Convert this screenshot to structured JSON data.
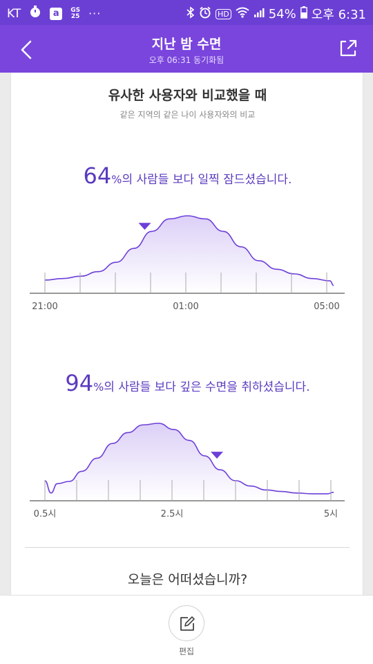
{
  "status_bar": {
    "carrier": "KT",
    "app_icons": [
      "timer-icon",
      "app-icon",
      "gs25-icon"
    ],
    "gs25_top": "GS",
    "gs25_bottom": "25",
    "more": "···",
    "hd": "HD",
    "battery_percent": "54%",
    "time": "오후 6:31"
  },
  "header": {
    "title": "지난 밤 수면",
    "subtitle": "오후 06:31 동기화됨"
  },
  "comparison": {
    "title": "유사한 사용자와 비교했을 때",
    "subtitle": "같은 지역의 같은 나이 사용자와의 비교"
  },
  "bedtime_stat": {
    "value": "64",
    "unit": "%",
    "text": "의 사람들 보다 일찍 잠드셨습니다."
  },
  "depth_stat": {
    "value": "94",
    "unit": "%",
    "text": "의 사람들 보다 깊은 수면을 취하셨습니다."
  },
  "chart_data": [
    {
      "type": "area",
      "title": "",
      "xlabel": "",
      "ylabel": "",
      "tick_labels": [
        "21:00",
        "01:00",
        "05:00"
      ],
      "x_hours": [
        21,
        21.5,
        22,
        22.5,
        23,
        23.5,
        24,
        24.5,
        25,
        25.5,
        26,
        26.5,
        27,
        27.5,
        28,
        28.5,
        29,
        29.1
      ],
      "density": [
        0.17,
        0.19,
        0.22,
        0.28,
        0.4,
        0.58,
        0.8,
        0.96,
        1.0,
        0.96,
        0.8,
        0.6,
        0.42,
        0.31,
        0.25,
        0.19,
        0.16,
        0.1
      ],
      "marker_x": 23.8,
      "accent_color": "#6d3fd8"
    },
    {
      "type": "area",
      "title": "",
      "xlabel": "",
      "ylabel": "",
      "tick_labels": [
        "0.5시",
        "2.5시",
        "5시"
      ],
      "x_hours": [
        0.4,
        0.5,
        0.6,
        0.8,
        1.0,
        1.25,
        1.5,
        1.75,
        2.0,
        2.25,
        2.5,
        2.75,
        3.0,
        3.25,
        3.5,
        3.75,
        4.0,
        4.25,
        4.5,
        4.75,
        5.0,
        5.1
      ],
      "density": [
        0.26,
        0.1,
        0.22,
        0.25,
        0.38,
        0.55,
        0.74,
        0.88,
        0.98,
        1.0,
        0.92,
        0.78,
        0.58,
        0.4,
        0.26,
        0.19,
        0.14,
        0.12,
        0.1,
        0.09,
        0.09,
        0.11
      ],
      "marker_x": 3.2,
      "accent_color": "#6d3fd8"
    }
  ],
  "question": "오늘은 어떠셨습니까?",
  "edit": {
    "label": "편집"
  }
}
